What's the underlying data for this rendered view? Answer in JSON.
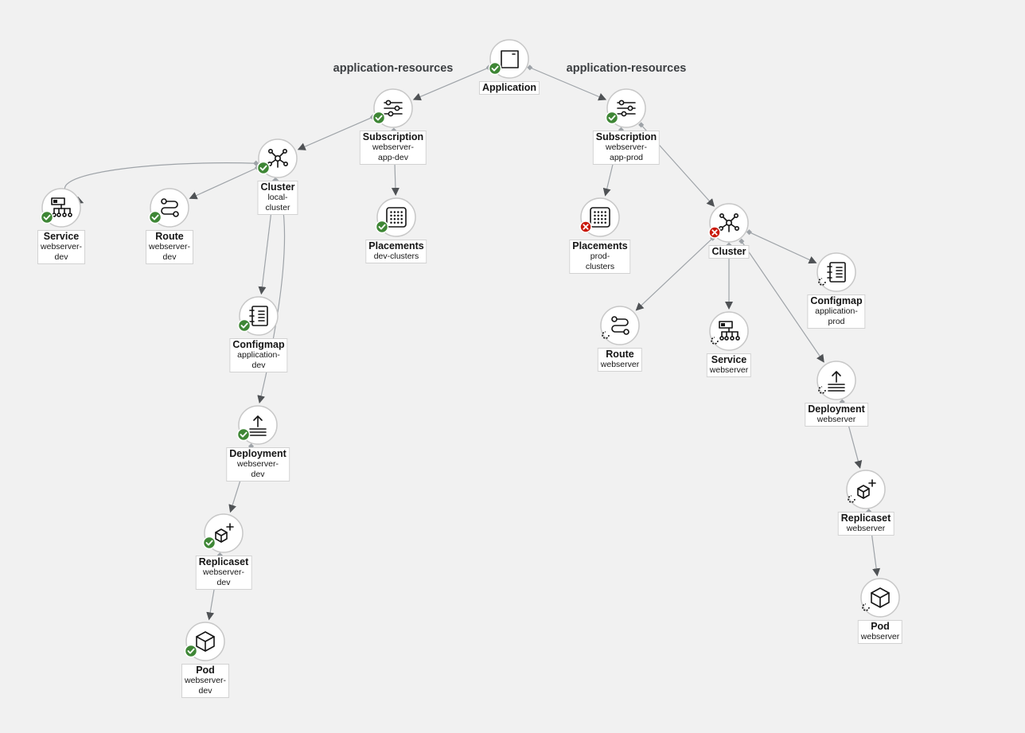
{
  "groups": [
    {
      "id": "g-dev",
      "label": "application-resources"
    },
    {
      "id": "g-prod",
      "label": "application-resources"
    }
  ],
  "colors": {
    "ok": "#3e8635",
    "failed": "#c9190b",
    "pending": "#151515",
    "edge": "#9ea3a8",
    "edgeHead": "#4f5255"
  },
  "nodes": [
    {
      "id": "app",
      "type": "application",
      "title": "Application",
      "subtitle": [],
      "status": "ok"
    },
    {
      "id": "sub-dev",
      "type": "subscription",
      "title": "Subscription",
      "subtitle": [
        "webserver-",
        "app-dev"
      ],
      "status": "ok"
    },
    {
      "id": "sub-prod",
      "type": "subscription",
      "title": "Subscription",
      "subtitle": [
        "webserver-",
        "app-prod"
      ],
      "status": "ok"
    },
    {
      "id": "cl-dev",
      "type": "cluster",
      "title": "Cluster",
      "subtitle": [
        "local-",
        "cluster"
      ],
      "status": "ok"
    },
    {
      "id": "pl-dev",
      "type": "placements",
      "title": "Placements",
      "subtitle": [
        "dev-clusters"
      ],
      "status": "ok"
    },
    {
      "id": "pl-prod",
      "type": "placements",
      "title": "Placements",
      "subtitle": [
        "prod-",
        "clusters"
      ],
      "status": "failed"
    },
    {
      "id": "cl-prod",
      "type": "cluster",
      "title": "Cluster",
      "subtitle": [],
      "status": "failed"
    },
    {
      "id": "svc-dev",
      "type": "service",
      "title": "Service",
      "subtitle": [
        "webserver-",
        "dev"
      ],
      "status": "ok"
    },
    {
      "id": "rt-dev",
      "type": "route",
      "title": "Route",
      "subtitle": [
        "webserver-",
        "dev"
      ],
      "status": "ok"
    },
    {
      "id": "cm-dev",
      "type": "configmap",
      "title": "Configmap",
      "subtitle": [
        "application-",
        "dev"
      ],
      "status": "ok"
    },
    {
      "id": "dep-dev",
      "type": "deployment",
      "title": "Deployment",
      "subtitle": [
        "webserver-",
        "dev"
      ],
      "status": "ok"
    },
    {
      "id": "rs-dev",
      "type": "replicaset",
      "title": "Replicaset",
      "subtitle": [
        "webserver-",
        "dev"
      ],
      "status": "ok"
    },
    {
      "id": "pod-dev",
      "type": "pod",
      "title": "Pod",
      "subtitle": [
        "webserver-",
        "dev"
      ],
      "status": "ok"
    },
    {
      "id": "rt-prod",
      "type": "route",
      "title": "Route",
      "subtitle": [
        "webserver"
      ],
      "status": "pending"
    },
    {
      "id": "svc-prod",
      "type": "service",
      "title": "Service",
      "subtitle": [
        "webserver"
      ],
      "status": "pending"
    },
    {
      "id": "cm-prod",
      "type": "configmap",
      "title": "Configmap",
      "subtitle": [
        "application-",
        "prod"
      ],
      "status": "pending"
    },
    {
      "id": "dep-prod",
      "type": "deployment",
      "title": "Deployment",
      "subtitle": [
        "webserver"
      ],
      "status": "pending"
    },
    {
      "id": "rs-prod",
      "type": "replicaset",
      "title": "Replicaset",
      "subtitle": [
        "webserver"
      ],
      "status": "pending"
    },
    {
      "id": "pod-prod",
      "type": "pod",
      "title": "Pod",
      "subtitle": [
        "webserver"
      ],
      "status": "pending"
    }
  ],
  "edges": [
    {
      "from": "app",
      "to": "sub-dev"
    },
    {
      "from": "app",
      "to": "sub-prod"
    },
    {
      "from": "sub-dev",
      "to": "cl-dev"
    },
    {
      "from": "sub-dev",
      "to": "pl-dev"
    },
    {
      "from": "sub-prod",
      "to": "pl-prod"
    },
    {
      "from": "sub-prod",
      "to": "cl-prod"
    },
    {
      "from": "cl-dev",
      "to": "svc-dev"
    },
    {
      "from": "cl-dev",
      "to": "rt-dev"
    },
    {
      "from": "cl-dev",
      "to": "cm-dev"
    },
    {
      "from": "cl-dev",
      "to": "dep-dev"
    },
    {
      "from": "dep-dev",
      "to": "rs-dev"
    },
    {
      "from": "rs-dev",
      "to": "pod-dev"
    },
    {
      "from": "cl-prod",
      "to": "rt-prod"
    },
    {
      "from": "cl-prod",
      "to": "svc-prod"
    },
    {
      "from": "cl-prod",
      "to": "cm-prod"
    },
    {
      "from": "cl-prod",
      "to": "dep-prod"
    },
    {
      "from": "dep-prod",
      "to": "rs-prod"
    },
    {
      "from": "rs-prod",
      "to": "pod-prod"
    }
  ]
}
